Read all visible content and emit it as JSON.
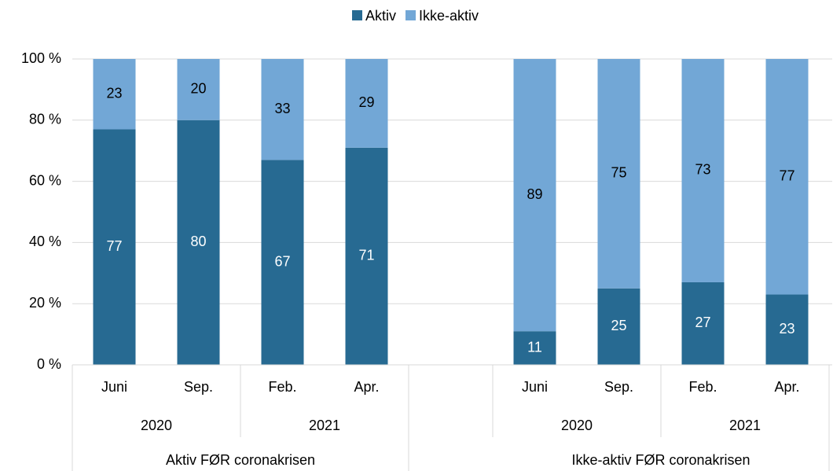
{
  "chart_data": {
    "type": "stacked_bar_100",
    "groups": [
      {
        "name": "Aktiv FØR coronakrisen",
        "subgroups": [
          {
            "name": "2020",
            "categories": [
              "Juni",
              "Sep."
            ]
          },
          {
            "name": "2021",
            "categories": [
              "Feb.",
              "Apr."
            ]
          }
        ]
      },
      {
        "name": "Ikke-aktiv FØR coronakrisen",
        "subgroups": [
          {
            "name": "2020",
            "categories": [
              "Juni",
              "Sep."
            ]
          },
          {
            "name": "2021",
            "categories": [
              "Feb.",
              "Apr."
            ]
          }
        ]
      }
    ],
    "series": [
      {
        "name": "Aktiv",
        "color": "#276a92",
        "label_color": "#ffffff",
        "values": [
          77,
          80,
          67,
          71,
          11,
          25,
          27,
          23
        ]
      },
      {
        "name": "Ikke-aktiv",
        "color": "#72a7d6",
        "label_color": "#000000",
        "values": [
          23,
          20,
          33,
          29,
          89,
          75,
          73,
          77
        ]
      }
    ],
    "ylim": [
      0,
      100
    ],
    "yticks": [
      {
        "value": 0,
        "label": "0 %"
      },
      {
        "value": 20,
        "label": "20 %"
      },
      {
        "value": 40,
        "label": "40 %"
      },
      {
        "value": 60,
        "label": "60 %"
      },
      {
        "value": 80,
        "label": "80 %"
      },
      {
        "value": 100,
        "label": "100 %"
      }
    ],
    "grid": true,
    "legend": "top"
  }
}
